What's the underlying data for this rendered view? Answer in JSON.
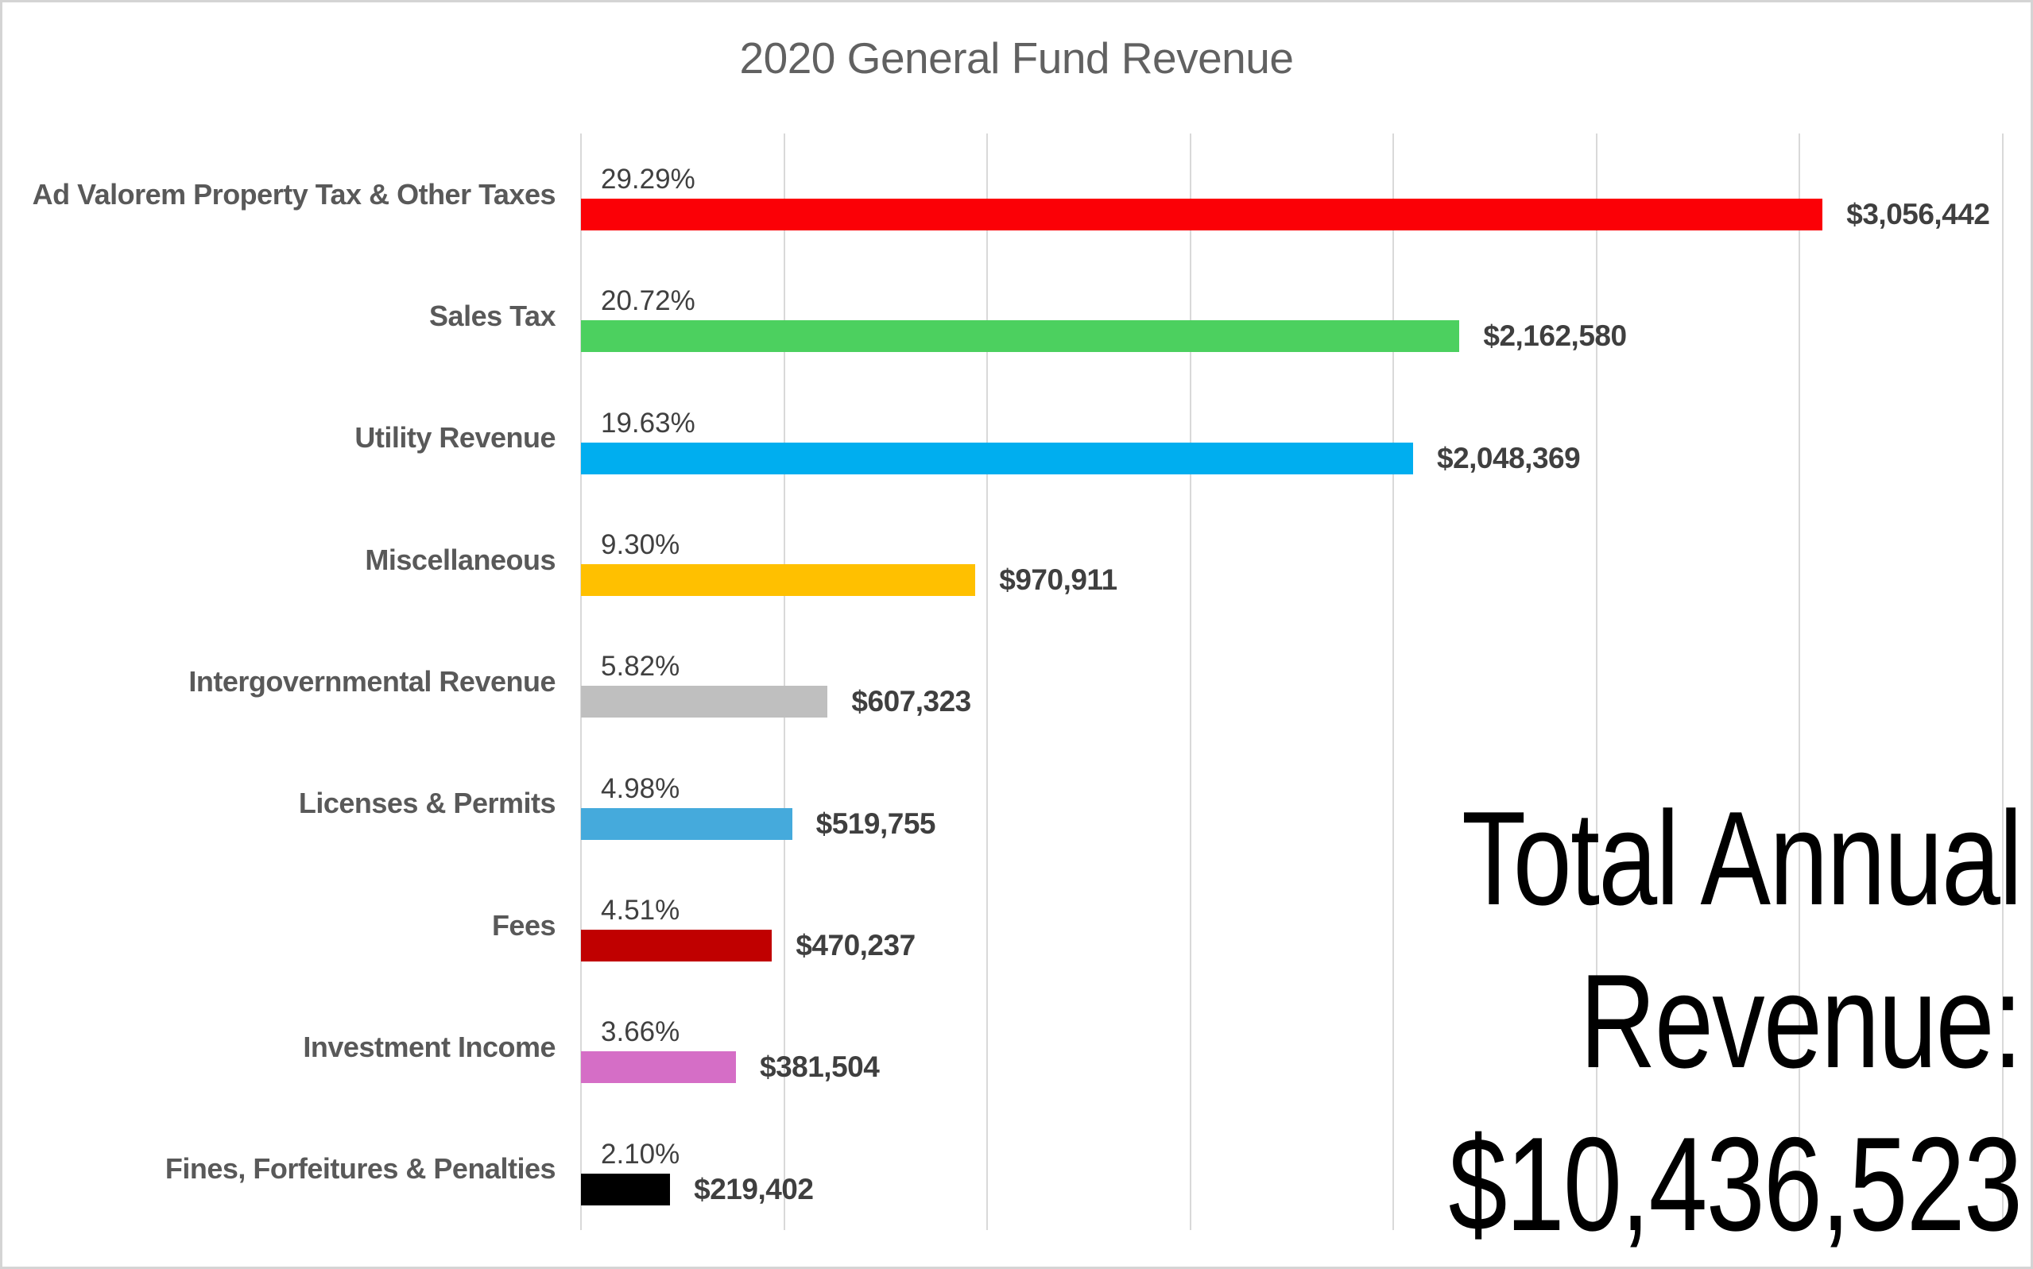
{
  "title": "2020 General Fund Revenue",
  "chart_data": {
    "type": "bar",
    "orientation": "horizontal",
    "title": "2020 General Fund Revenue",
    "x_axis": {
      "min": 0,
      "max": 3500000,
      "gridline_interval": 500000,
      "tick_labels_visible": false
    },
    "grid": true,
    "legend": "none",
    "rows": [
      {
        "category": "Ad Valorem Property Tax & Other Taxes",
        "percent_label": "29.29%",
        "value": 3056442,
        "value_label": "$3,056,442",
        "color": "#FB0006"
      },
      {
        "category": "Sales Tax",
        "percent_label": "20.72%",
        "value": 2162580,
        "value_label": "$2,162,580",
        "color": "#4CD05F"
      },
      {
        "category": "Utility Revenue",
        "percent_label": "19.63%",
        "value": 2048369,
        "value_label": "$2,048,369",
        "color": "#00AEEF"
      },
      {
        "category": "Miscellaneous",
        "percent_label": "9.30%",
        "value": 970911,
        "value_label": "$970,911",
        "color": "#FFC000"
      },
      {
        "category": "Intergovernmental Revenue",
        "percent_label": "5.82%",
        "value": 607323,
        "value_label": "$607,323",
        "color": "#BFBFBF"
      },
      {
        "category": "Licenses & Permits",
        "percent_label": "4.98%",
        "value": 519755,
        "value_label": "$519,755",
        "color": "#45AADC"
      },
      {
        "category": "Fees",
        "percent_label": "4.51%",
        "value": 470237,
        "value_label": "$470,237",
        "color": "#C00000"
      },
      {
        "category": "Investment Income",
        "percent_label": "3.66%",
        "value": 381504,
        "value_label": "$381,504",
        "color": "#D56EC6"
      },
      {
        "category": "Fines, Forfeitures & Penalties",
        "percent_label": "2.10%",
        "value": 219402,
        "value_label": "$219,402",
        "color": "#000000"
      }
    ],
    "annotation": {
      "lines": [
        "Total Annual",
        "Revenue:",
        "$10,436,523"
      ]
    }
  },
  "colors": {
    "background": "#FFFFFF",
    "border": "#D4D4D4",
    "grid": "#D9D9D9",
    "title_text": "#616161",
    "category_text": "#595959",
    "percent_text": "#404040",
    "value_text": "#3F3F3F",
    "annotation_text": "#000000"
  }
}
